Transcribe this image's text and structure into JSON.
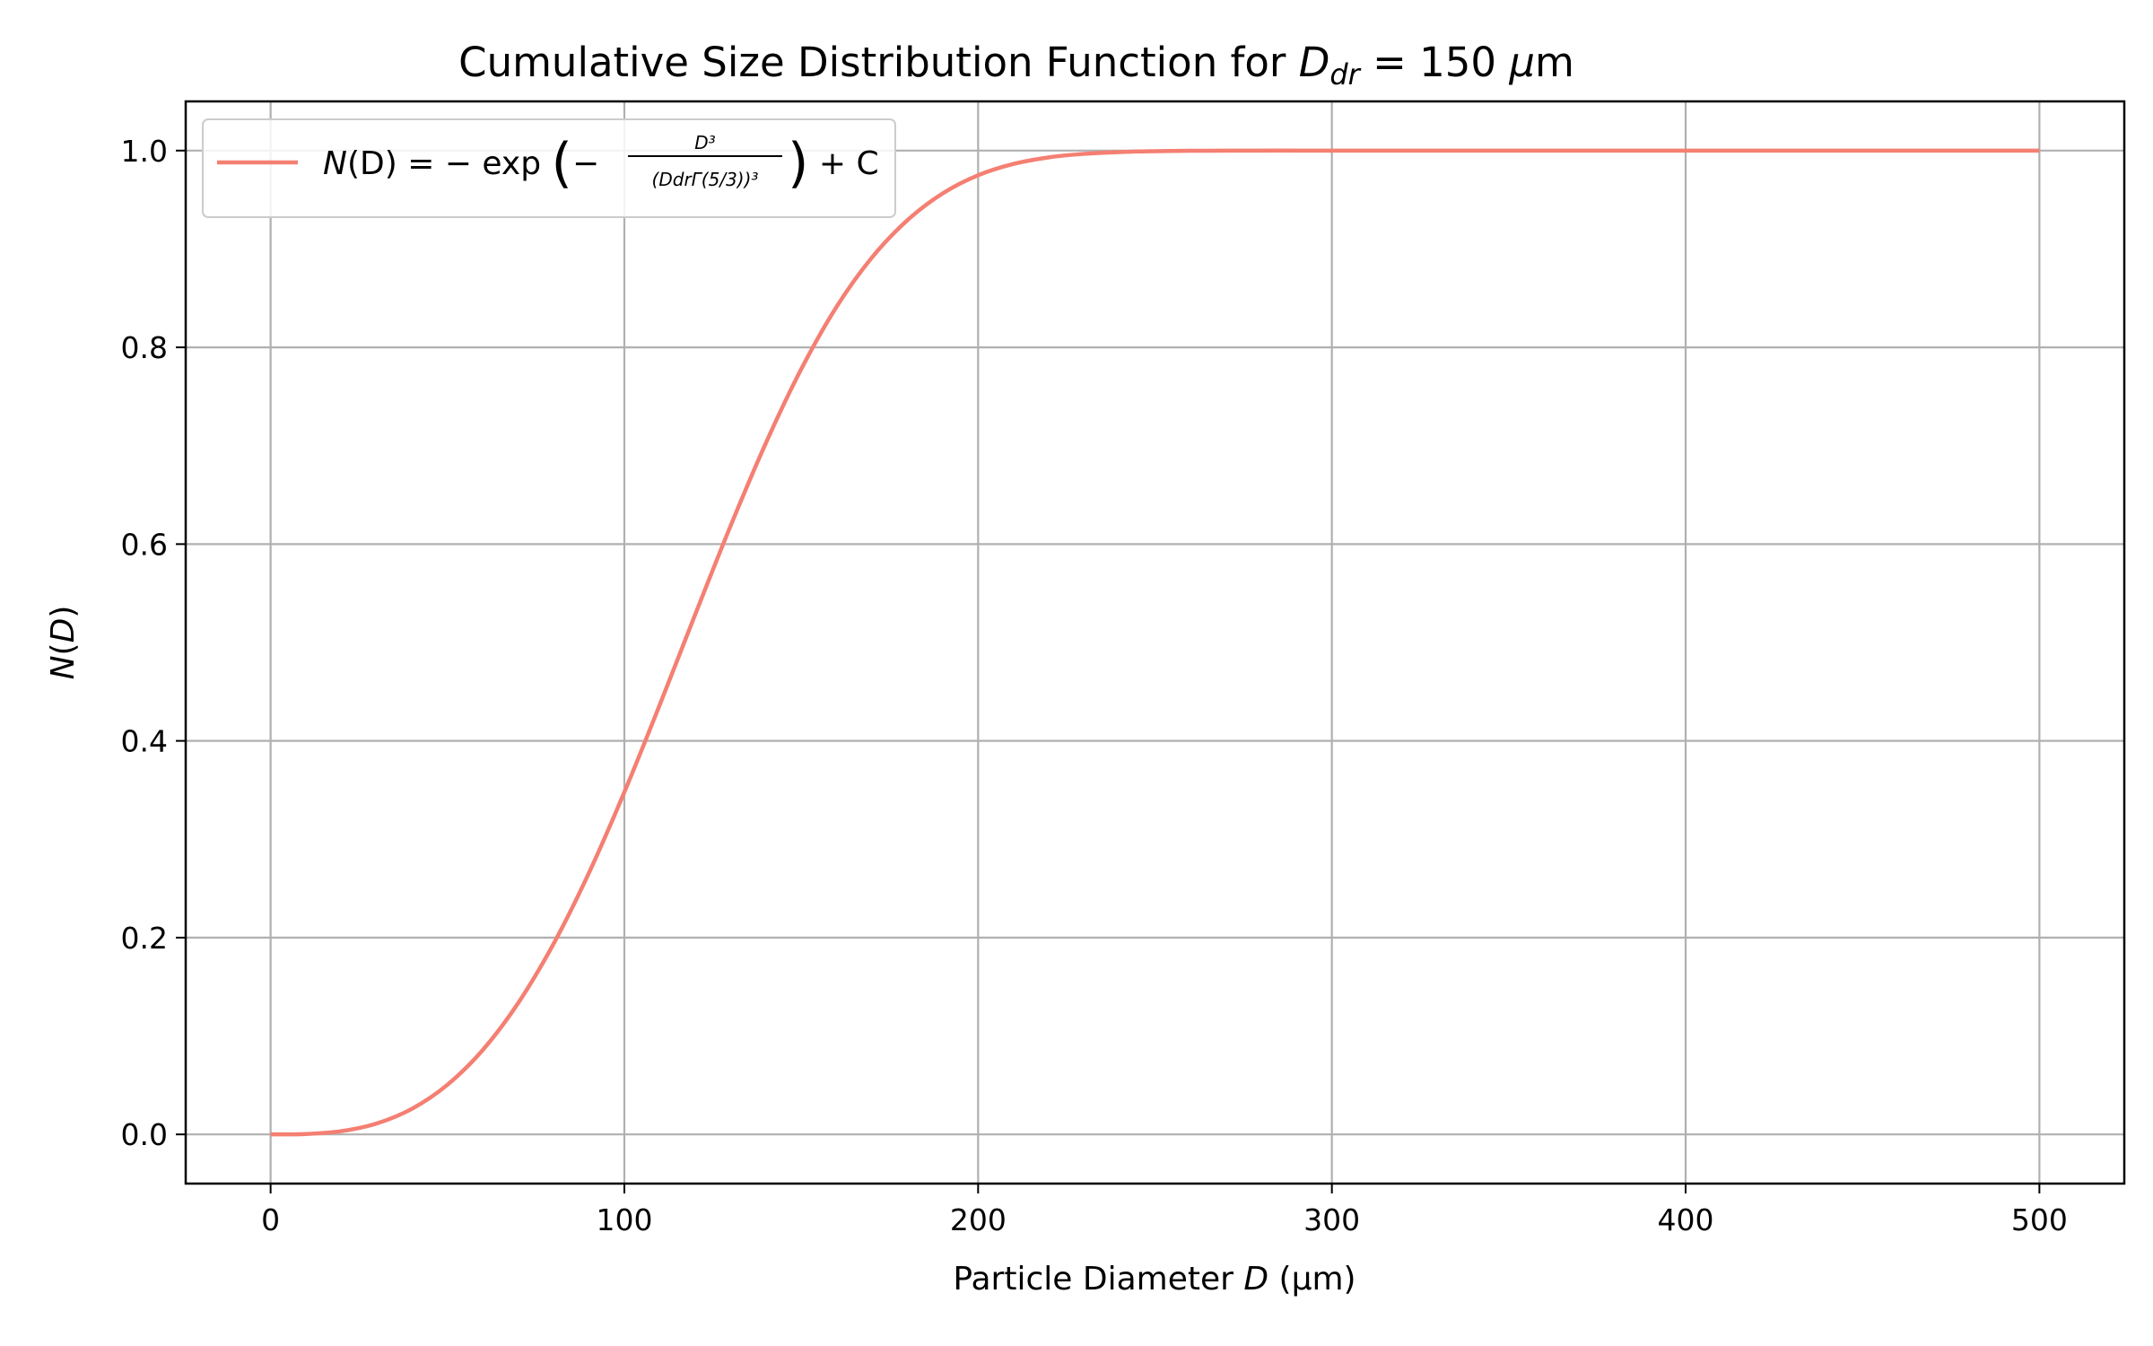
{
  "chart_data": {
    "type": "line",
    "title": {
      "prefix": "Cumulative Size Distribution Function for ",
      "var": "D",
      "sub": "dr",
      "suffix": " = 150 ",
      "mu": "μ",
      "unit": "m"
    },
    "xlabel": {
      "prefix": "Particle Diameter ",
      "var": "D",
      "suffix": " (μm)"
    },
    "ylabel": {
      "var": "N",
      "open": "(",
      "var2": "D",
      "close": ")"
    },
    "xlim": [
      -24,
      524
    ],
    "ylim": [
      -0.05,
      1.05
    ],
    "xticks": [
      0,
      100,
      200,
      300,
      400,
      500
    ],
    "yticks": [
      0.0,
      0.2,
      0.4,
      0.6,
      0.8,
      1.0
    ],
    "xtick_labels": [
      "0",
      "100",
      "200",
      "300",
      "400",
      "500"
    ],
    "ytick_labels": [
      "0.0",
      "0.2",
      "0.4",
      "0.6",
      "0.8",
      "1.0"
    ],
    "grid": true,
    "legend_position": "top-left",
    "series": [
      {
        "name": "N(D) = − exp(−D³ / (D_dr Γ(5/3))³) + C",
        "color": "#f47f72",
        "x": [
          0,
          10,
          20,
          30,
          40,
          50,
          60,
          70,
          80,
          90,
          100,
          110,
          120,
          130,
          140,
          150,
          160,
          170,
          180,
          190,
          200,
          210,
          220,
          230,
          240,
          250,
          260,
          270,
          280,
          290,
          300,
          350,
          400,
          450,
          500
        ],
        "y": [
          0.0,
          0.0004,
          0.0033,
          0.0111,
          0.0261,
          0.0505,
          0.0859,
          0.1336,
          0.1938,
          0.2659,
          0.3479,
          0.4366,
          0.5282,
          0.6183,
          0.7027,
          0.7779,
          0.8413,
          0.8914,
          0.9292,
          0.9565,
          0.9749,
          0.9864,
          0.9931,
          0.9967,
          0.9985,
          0.9994,
          0.9998,
          0.9999,
          1.0,
          1.0,
          1.0,
          1.0,
          1.0,
          1.0,
          1.0
        ]
      }
    ],
    "legend": {
      "prefix": "N",
      "mid": "(D) = − exp ",
      "frac_num": "D³",
      "frac_den": "(DdrΓ(5/3))³",
      "suffix": " + C"
    }
  }
}
